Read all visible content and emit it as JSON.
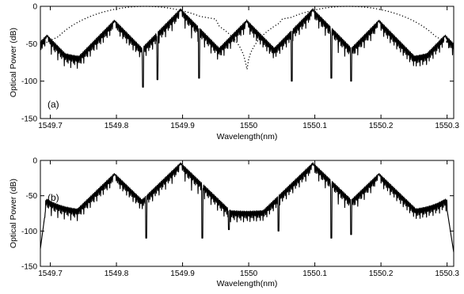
{
  "chart_data": [
    {
      "type": "line",
      "panel_label": "(a)",
      "xlabel": "Wavelength(nm)",
      "ylabel": "Optical Power (dB)",
      "xlim": [
        1549.685,
        1550.31
      ],
      "ylim": [
        -150,
        0
      ],
      "xticks": [
        1549.7,
        1549.8,
        1549.9,
        1550,
        1550.1,
        1550.2,
        1550.3
      ],
      "xtick_labels": [
        "1549.7",
        "1549.8",
        "1549.9",
        "1550",
        "1550.1",
        "1550.2",
        "1550.3"
      ],
      "yticks": [
        0,
        -50,
        -100,
        -150
      ],
      "ytick_labels": [
        "0",
        "-50",
        "-100",
        "-150"
      ],
      "grid": false,
      "series": [
        {
          "style": "solid",
          "peaks": [
            {
              "x": 1549.695,
              "y": -40
            },
            {
              "x": 1549.797,
              "y": -20
            },
            {
              "x": 1549.897,
              "y": -5
            },
            {
              "x": 1549.997,
              "y": -20
            },
            {
              "x": 1550.097,
              "y": -5
            },
            {
              "x": 1550.197,
              "y": -20
            },
            {
              "x": 1550.297,
              "y": -40
            }
          ],
          "floor_range": [
            -80,
            -60
          ],
          "deep_dips": [
            {
              "x": 1549.84,
              "y": -108
            },
            {
              "x": 1549.862,
              "y": -98
            },
            {
              "x": 1549.925,
              "y": -96
            },
            {
              "x": 1550.065,
              "y": -100
            },
            {
              "x": 1550.125,
              "y": -96
            },
            {
              "x": 1550.155,
              "y": -100
            }
          ]
        },
        {
          "style": "dotted",
          "description_points": [
            {
              "x": 1549.69,
              "y": -48
            },
            {
              "x": 1549.795,
              "y": -3
            },
            {
              "x": 1549.85,
              "y": 0
            },
            {
              "x": 1549.95,
              "y": -15
            },
            {
              "x": 1549.997,
              "y": -100
            },
            {
              "x": 1550.05,
              "y": -15
            },
            {
              "x": 1550.15,
              "y": 0
            },
            {
              "x": 1550.2,
              "y": -3
            },
            {
              "x": 1550.305,
              "y": -48
            }
          ]
        }
      ]
    },
    {
      "type": "line",
      "panel_label": "(b)",
      "xlabel": "Wavelength(nm)",
      "ylabel": "Optical Power (dB)",
      "xlim": [
        1549.685,
        1550.31
      ],
      "ylim": [
        -150,
        0
      ],
      "xticks": [
        1549.7,
        1549.8,
        1549.9,
        1550,
        1550.1,
        1550.2,
        1550.3
      ],
      "xtick_labels": [
        "1549.7",
        "1549.8",
        "1549.9",
        "1550",
        "1550.1",
        "1550.2",
        "1550.3"
      ],
      "yticks": [
        0,
        -50,
        -100,
        -150
      ],
      "ytick_labels": [
        "0",
        "-50",
        "-100",
        "-150"
      ],
      "grid": false,
      "series": [
        {
          "style": "solid",
          "peaks": [
            {
              "x": 1549.695,
              "y": -70
            },
            {
              "x": 1549.797,
              "y": -20
            },
            {
              "x": 1549.897,
              "y": -5
            },
            {
              "x": 1550.097,
              "y": -5
            },
            {
              "x": 1550.197,
              "y": -20
            },
            {
              "x": 1550.297,
              "y": -70
            }
          ],
          "floor_range": [
            -95,
            -50
          ],
          "edge_values": [
            {
              "x": 1549.685,
              "y": -125
            },
            {
              "x": 1550.31,
              "y": -130
            }
          ],
          "deep_dips": [
            {
              "x": 1549.845,
              "y": -110
            },
            {
              "x": 1549.93,
              "y": -110
            },
            {
              "x": 1549.97,
              "y": -98
            },
            {
              "x": 1550.045,
              "y": -100
            },
            {
              "x": 1550.125,
              "y": -110
            },
            {
              "x": 1550.155,
              "y": -105
            }
          ]
        }
      ]
    }
  ]
}
